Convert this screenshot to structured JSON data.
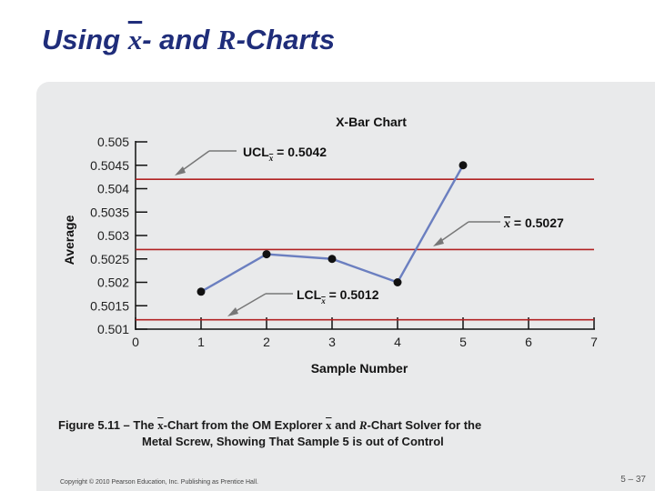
{
  "slide": {
    "title_prefix": "Using ",
    "title_x": "x",
    "title_mid": "- and ",
    "title_r": "R",
    "title_suffix": "-Charts"
  },
  "chart_data": {
    "type": "line",
    "title": "X-Bar Chart",
    "xlabel": "Sample Number",
    "ylabel": "Average",
    "x": [
      1,
      2,
      3,
      4,
      5
    ],
    "values": [
      0.5018,
      0.5026,
      0.5025,
      0.502,
      0.5045
    ],
    "xlim": [
      0,
      7
    ],
    "ylim": [
      0.501,
      0.505
    ],
    "x_ticks": [
      "0",
      "1",
      "2",
      "3",
      "4",
      "5",
      "6",
      "7"
    ],
    "y_ticks": [
      "0.505",
      "0.5045",
      "0.504",
      "0.5035",
      "0.503",
      "0.5025",
      "0.502",
      "0.5015",
      "0.501"
    ],
    "control_lines": {
      "ucl": 0.5042,
      "center": 0.5027,
      "lcl": 0.5012
    },
    "annotations": {
      "ucl_label": "UCL",
      "ucl_value": " = 0.5042",
      "center_label": "x",
      "center_value": " = 0.5027",
      "lcl_label": "LCL",
      "lcl_value": " = 0.5012",
      "sub": "x"
    },
    "colors": {
      "line": "#6b7fc0",
      "control": "#b22222",
      "point": "#111111"
    }
  },
  "caption": {
    "line1_a": "Figure 5.11 – The ",
    "line1_x": "x",
    "line1_b": "-Chart from the OM Explorer ",
    "line1_x2": "x",
    "line1_c": " and ",
    "line1_r": "R",
    "line1_d": "-Chart Solver for the",
    "line2": "Metal Screw, Showing That Sample 5 is out of Control"
  },
  "footer": {
    "copyright": "Copyright © 2010 Pearson Education, Inc. Publishing as Prentice Hall.",
    "page": "5 – 37"
  }
}
